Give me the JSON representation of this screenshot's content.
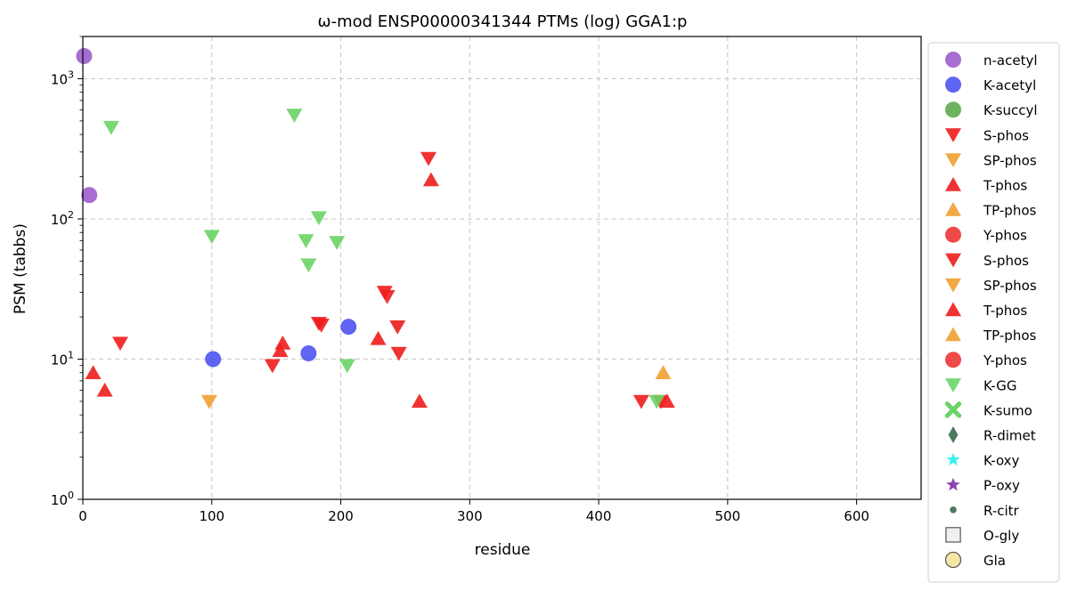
{
  "chart_data": {
    "type": "scatter",
    "title": "ω-mod ENSP00000341344 PTMs (log) GGA1:p",
    "xlabel": "residue",
    "ylabel": "PSM (tabbs)",
    "xlim": [
      0,
      650
    ],
    "ylim": [
      1,
      2000
    ],
    "yscale": "log",
    "grid": true,
    "legend_position": "right-outside",
    "x_ticks": [
      {
        "v": 0,
        "label": "0"
      },
      {
        "v": 100,
        "label": "100"
      },
      {
        "v": 200,
        "label": "200"
      },
      {
        "v": 300,
        "label": "300"
      },
      {
        "v": 400,
        "label": "400"
      },
      {
        "v": 500,
        "label": "500"
      },
      {
        "v": 600,
        "label": "600"
      }
    ],
    "y_ticks": [
      {
        "v": 1,
        "base": "10",
        "exp": "0"
      },
      {
        "v": 10,
        "base": "10",
        "exp": "1"
      },
      {
        "v": 100,
        "base": "10",
        "exp": "2"
      },
      {
        "v": 1000,
        "base": "10",
        "exp": "3"
      }
    ],
    "series": [
      {
        "name": "n-acetyl",
        "marker": "circle",
        "color": "#9b59c9",
        "points": [
          [
            1,
            1450
          ],
          [
            5,
            148
          ]
        ]
      },
      {
        "name": "K-acetyl",
        "marker": "circle",
        "color": "#4a4ff0",
        "points": [
          [
            101,
            10
          ],
          [
            175,
            11
          ],
          [
            206,
            17
          ]
        ]
      },
      {
        "name": "K-succyl",
        "marker": "circle",
        "color": "#58a84a",
        "points": []
      },
      {
        "name": "S-phos",
        "marker": "triangle-down",
        "color": "#ee1c1c",
        "points": [
          [
            29,
            13
          ],
          [
            147,
            9
          ],
          [
            183,
            18
          ],
          [
            185,
            17.5
          ],
          [
            234,
            30
          ],
          [
            236,
            28
          ],
          [
            244,
            17
          ],
          [
            245,
            11
          ],
          [
            268,
            270
          ],
          [
            433,
            5
          ],
          [
            448,
            5
          ]
        ]
      },
      {
        "name": "SP-phos",
        "marker": "triangle-down",
        "color": "#f0a030",
        "points": [
          [
            98,
            5
          ]
        ]
      },
      {
        "name": "T-phos",
        "marker": "triangle-up",
        "color": "#ee1c1c",
        "points": [
          [
            8,
            8
          ],
          [
            17,
            6
          ],
          [
            153,
            11.5
          ],
          [
            155,
            13
          ],
          [
            229,
            14
          ],
          [
            261,
            5
          ],
          [
            270,
            190
          ],
          [
            453,
            5
          ]
        ]
      },
      {
        "name": "TP-phos",
        "marker": "triangle-up",
        "color": "#f0a030",
        "points": [
          [
            450,
            8
          ]
        ]
      },
      {
        "name": "Y-phos",
        "marker": "circle",
        "color": "#ee3030",
        "points": []
      },
      {
        "name": "S-phos",
        "marker": "triangle-down",
        "color": "#ee1c1c",
        "points": []
      },
      {
        "name": "SP-phos",
        "marker": "triangle-down",
        "color": "#f0a030",
        "points": []
      },
      {
        "name": "T-phos",
        "marker": "triangle-up",
        "color": "#ee1c1c",
        "points": []
      },
      {
        "name": "TP-phos",
        "marker": "triangle-up",
        "color": "#f0a030",
        "points": []
      },
      {
        "name": "Y-phos",
        "marker": "circle",
        "color": "#ee3030",
        "points": []
      },
      {
        "name": "K-GG",
        "marker": "triangle-down",
        "color": "#6cd465",
        "points": [
          [
            22,
            450
          ],
          [
            100,
            75
          ],
          [
            164,
            550
          ],
          [
            173,
            70
          ],
          [
            175,
            47
          ],
          [
            183,
            102
          ],
          [
            197,
            68
          ],
          [
            205,
            9
          ],
          [
            445,
            5
          ]
        ]
      },
      {
        "name": "K-sumo",
        "marker": "x",
        "color": "#6cd465",
        "points": []
      },
      {
        "name": "R-dimet",
        "marker": "diamond",
        "color": "#4a7a60",
        "points": []
      },
      {
        "name": "K-oxy",
        "marker": "star",
        "color": "#40f0f0",
        "points": []
      },
      {
        "name": "P-oxy",
        "marker": "star",
        "color": "#8e44ad",
        "points": []
      },
      {
        "name": "R-citr",
        "marker": "small-circle",
        "color": "#4a7a60",
        "points": []
      },
      {
        "name": "O-gly",
        "marker": "square-open",
        "color": "#f0f0f0",
        "points": []
      },
      {
        "name": "Gla",
        "marker": "circle-open",
        "color": "#f5e6a8",
        "points": []
      }
    ]
  }
}
